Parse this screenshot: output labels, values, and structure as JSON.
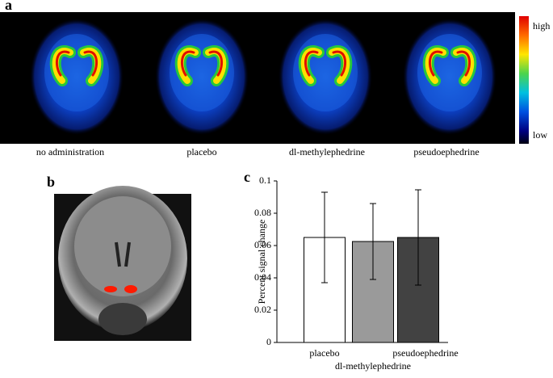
{
  "panel_labels": [
    "a",
    "b",
    "c"
  ],
  "pet_images": {
    "captions": [
      "no administration",
      "placebo",
      "dl-methylephedrine",
      "pseudoephedrine"
    ],
    "colorbar": {
      "high": "high",
      "low": "low"
    }
  },
  "chart_data": {
    "type": "bar",
    "ylabel": "Percent signal change",
    "categories": [
      "placebo",
      "dl-methylephedrine",
      "pseudoephedrine"
    ],
    "values": [
      0.065,
      0.0625,
      0.065
    ],
    "errors": [
      0.028,
      0.0235,
      0.0295
    ],
    "colors": [
      "#ffffff",
      "#9a9a9a",
      "#424242"
    ],
    "ylim": [
      0,
      0.1
    ],
    "yticks": [
      0,
      0.02,
      0.04,
      0.06,
      0.08,
      0.1
    ]
  }
}
